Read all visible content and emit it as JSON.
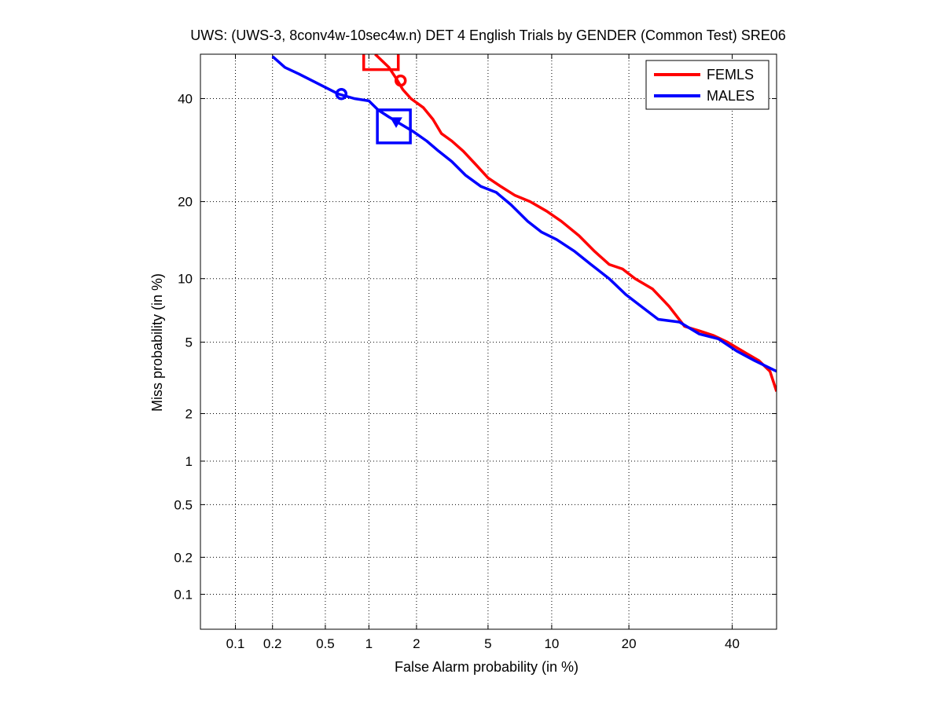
{
  "chart_data": {
    "type": "line",
    "subtype": "DET",
    "title": "UWS: (UWS-3, 8conv4w-10sec4w.n) DET 4 English Trials by GENDER (Common Test) SRE06",
    "xlabel": "False Alarm probability (in %)",
    "ylabel": "Miss probability (in %)",
    "x_scale": "probit",
    "y_scale": "probit",
    "xlim": [
      0.05,
      50
    ],
    "ylim": [
      0.05,
      50
    ],
    "x_ticks": [
      0.1,
      0.2,
      0.5,
      1,
      2,
      5,
      10,
      20,
      40
    ],
    "x_tick_labels": [
      "0.1",
      "0.2",
      "0.5",
      "1",
      "2",
      "5",
      "10",
      "20",
      "40"
    ],
    "y_ticks": [
      0.1,
      0.2,
      0.5,
      1,
      2,
      5,
      10,
      20,
      40
    ],
    "y_tick_labels": [
      "0.1",
      "0.2",
      "0.5",
      "1",
      "2",
      "5",
      "10",
      "20",
      "40"
    ],
    "grid": true,
    "legend_position": "top-right",
    "series": [
      {
        "name": "FEMLS",
        "color": "#ff0000",
        "x": [
          1.1,
          1.35,
          1.5,
          1.65,
          1.85,
          2.2,
          2.5,
          2.8,
          3.2,
          3.7,
          4.3,
          5.0,
          5.8,
          6.8,
          8.0,
          9.5,
          11.0,
          13.0,
          15.0,
          17.0,
          19.0,
          21.0,
          24.0,
          27.0,
          30.0,
          33.0,
          36.0,
          39.0,
          43.0,
          46.0,
          48.5,
          50.0
        ],
        "y": [
          50.0,
          47.0,
          44.5,
          42.0,
          40.0,
          38.0,
          35.5,
          32.5,
          31.0,
          29.0,
          26.5,
          24.0,
          22.5,
          21.0,
          20.0,
          18.5,
          17.0,
          15.0,
          13.0,
          11.5,
          11.0,
          10.0,
          9.0,
          7.5,
          6.0,
          5.7,
          5.4,
          5.0,
          4.4,
          4.0,
          3.5,
          2.7
        ]
      },
      {
        "name": "MALES",
        "color": "#0000ff",
        "x": [
          0.2,
          0.25,
          0.32,
          0.4,
          0.5,
          0.62,
          0.8,
          1.0,
          1.15,
          1.35,
          1.6,
          1.9,
          2.3,
          2.7,
          3.2,
          3.8,
          4.6,
          5.5,
          6.5,
          7.8,
          9.0,
          10.5,
          12.5,
          14.5,
          17.0,
          19.5,
          22.0,
          25.0,
          29.0,
          33.0,
          37.0,
          41.0,
          45.0,
          50.0
        ],
        "y": [
          49.5,
          47.0,
          45.5,
          44.0,
          42.5,
          41.0,
          40.0,
          39.5,
          37.5,
          36.0,
          34.5,
          33.0,
          31.0,
          29.0,
          27.0,
          24.5,
          22.5,
          21.5,
          19.5,
          17.0,
          15.5,
          14.5,
          13.0,
          11.5,
          10.0,
          8.5,
          7.5,
          6.5,
          6.3,
          5.5,
          5.2,
          4.5,
          4.0,
          3.5
        ]
      }
    ],
    "markers": [
      {
        "series": "FEMLS",
        "shape": "circle",
        "x": 1.6,
        "y": 44.0
      },
      {
        "series": "FEMLS",
        "shape": "square-partial",
        "x": 1.2,
        "y": 49.0
      },
      {
        "series": "MALES",
        "shape": "circle",
        "x": 0.65,
        "y": 41.0
      },
      {
        "series": "MALES",
        "shape": "square",
        "x": 1.45,
        "y": 34.0
      },
      {
        "series": "MALES",
        "shape": "triangle-down",
        "x": 1.5,
        "y": 35.0
      }
    ]
  }
}
